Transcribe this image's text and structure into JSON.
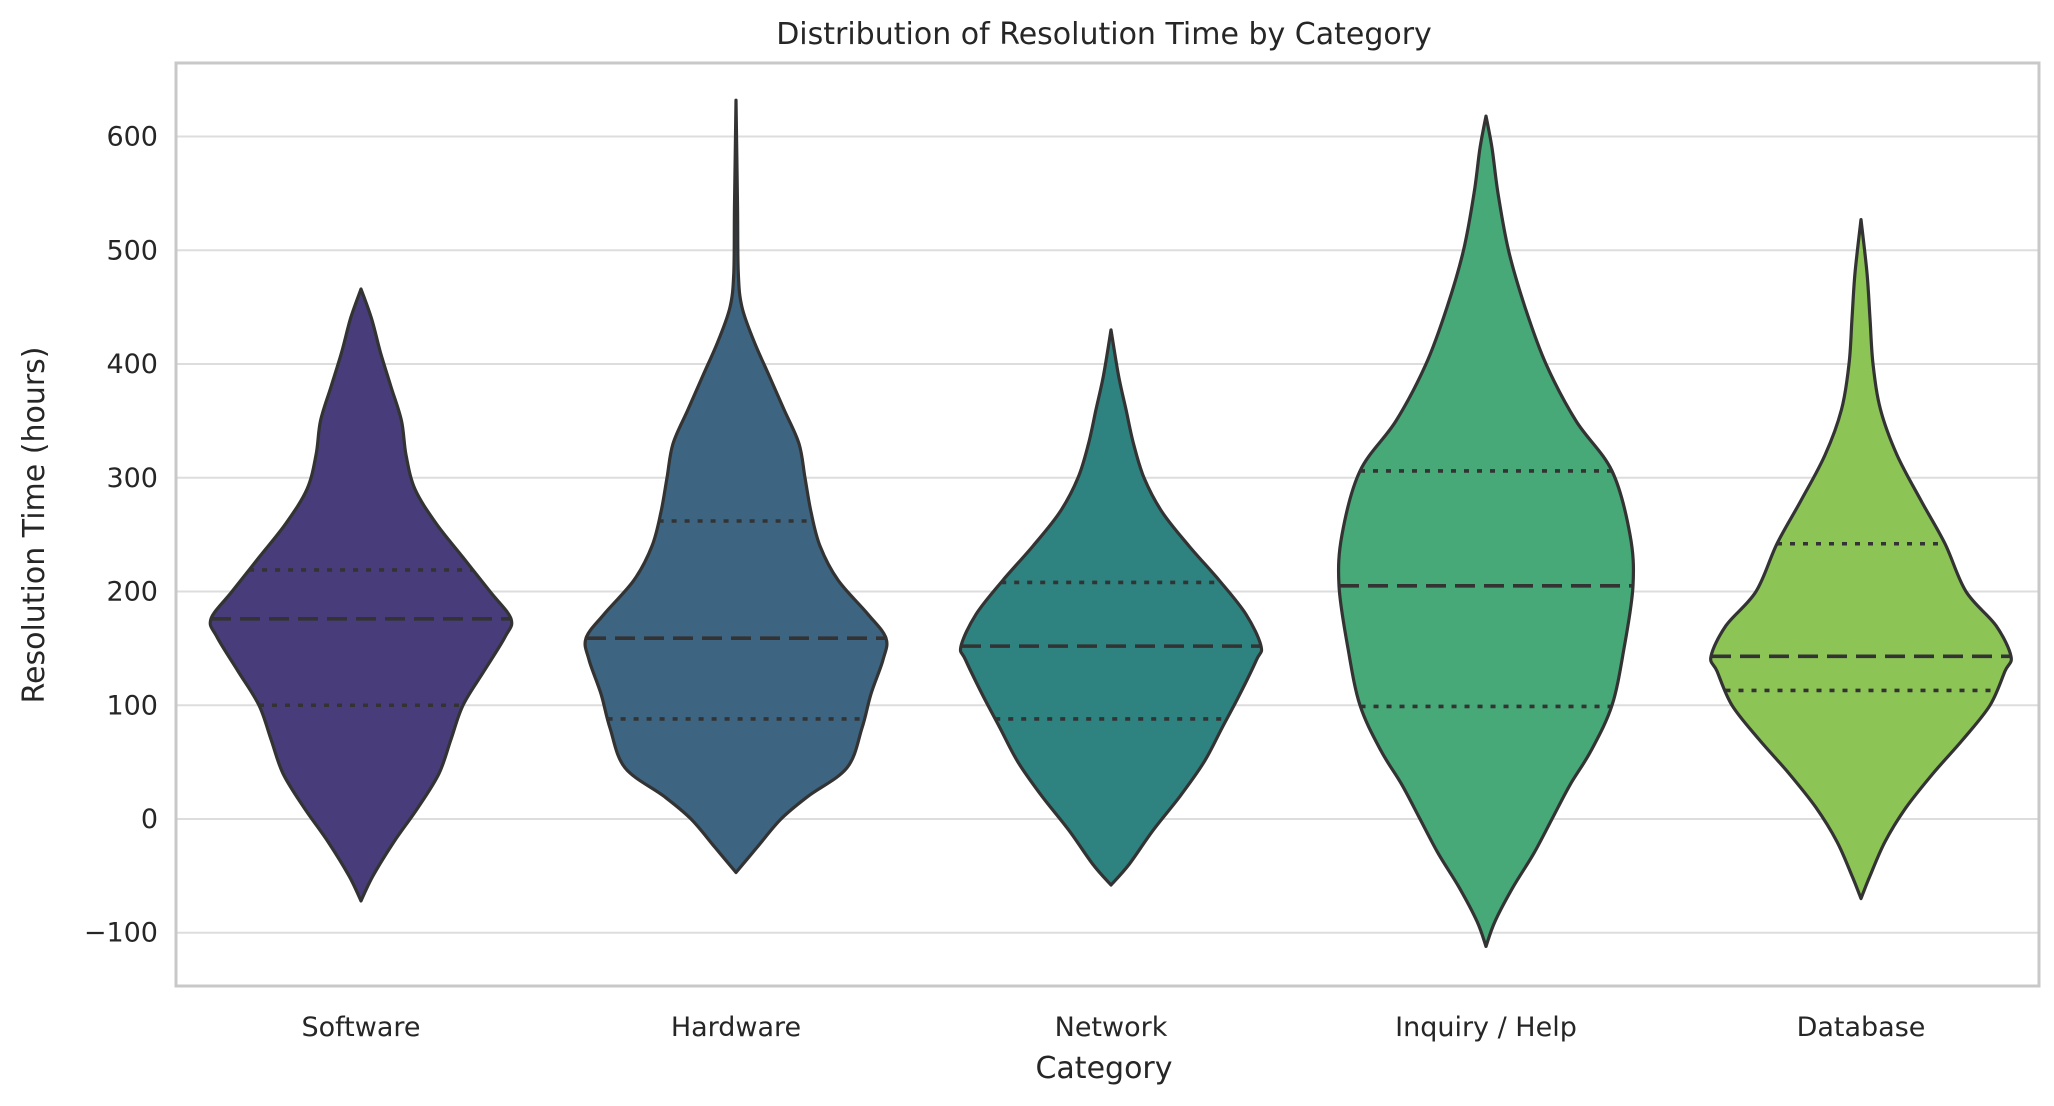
{
  "chart_data": {
    "type": "violin",
    "title": "Distribution of Resolution Time by Category",
    "xlabel": "Category",
    "ylabel": "Resolution Time (hours)",
    "ylim": [
      -150,
      670
    ],
    "yticks": [
      -100,
      0,
      100,
      200,
      300,
      400,
      500,
      600
    ],
    "ytick_labels": [
      "−100",
      "0",
      "100",
      "200",
      "300",
      "400",
      "500",
      "600"
    ],
    "grid": "horizontal",
    "inner": "quartile",
    "categories": [
      "Software",
      "Hardware",
      "Network",
      "Inquiry / Help",
      "Database"
    ],
    "series": [
      {
        "category": "Software",
        "color": "#483d7a",
        "min": -72,
        "max": 466,
        "q1": 100,
        "median": 176,
        "q3": 219,
        "density_profile": [
          [
            -72,
            0.0
          ],
          [
            -50,
            0.08
          ],
          [
            -20,
            0.22
          ],
          [
            10,
            0.38
          ],
          [
            40,
            0.52
          ],
          [
            70,
            0.6
          ],
          [
            100,
            0.68
          ],
          [
            130,
            0.82
          ],
          [
            160,
            0.96
          ],
          [
            176,
            1.0
          ],
          [
            200,
            0.86
          ],
          [
            230,
            0.68
          ],
          [
            260,
            0.5
          ],
          [
            290,
            0.36
          ],
          [
            320,
            0.3
          ],
          [
            350,
            0.27
          ],
          [
            380,
            0.2
          ],
          [
            410,
            0.13
          ],
          [
            440,
            0.07
          ],
          [
            466,
            0.0
          ]
        ]
      },
      {
        "category": "Hardware",
        "color": "#3d6581",
        "min": -47,
        "max": 632,
        "q1": 88,
        "median": 159,
        "q3": 262,
        "density_profile": [
          [
            -47,
            0.0
          ],
          [
            -25,
            0.14
          ],
          [
            0,
            0.3
          ],
          [
            20,
            0.48
          ],
          [
            45,
            0.74
          ],
          [
            80,
            0.84
          ],
          [
            110,
            0.9
          ],
          [
            140,
            0.98
          ],
          [
            159,
            1.0
          ],
          [
            180,
            0.88
          ],
          [
            210,
            0.68
          ],
          [
            240,
            0.56
          ],
          [
            270,
            0.5
          ],
          [
            300,
            0.46
          ],
          [
            330,
            0.42
          ],
          [
            360,
            0.32
          ],
          [
            390,
            0.22
          ],
          [
            420,
            0.12
          ],
          [
            450,
            0.04
          ],
          [
            480,
            0.015
          ],
          [
            540,
            0.01
          ],
          [
            632,
            0.0
          ]
        ]
      },
      {
        "category": "Network",
        "color": "#2e8380",
        "min": -58,
        "max": 430,
        "q1": 88,
        "median": 152,
        "q3": 208,
        "density_profile": [
          [
            -58,
            0.0
          ],
          [
            -40,
            0.12
          ],
          [
            -10,
            0.28
          ],
          [
            20,
            0.46
          ],
          [
            50,
            0.62
          ],
          [
            80,
            0.74
          ],
          [
            110,
            0.86
          ],
          [
            140,
            0.97
          ],
          [
            152,
            1.0
          ],
          [
            180,
            0.9
          ],
          [
            210,
            0.72
          ],
          [
            240,
            0.52
          ],
          [
            270,
            0.34
          ],
          [
            300,
            0.22
          ],
          [
            330,
            0.15
          ],
          [
            360,
            0.1
          ],
          [
            390,
            0.05
          ],
          [
            430,
            0.0
          ]
        ]
      },
      {
        "category": "Inquiry / Help",
        "color": "#47a878",
        "min": -112,
        "max": 618,
        "q1": 99,
        "median": 205,
        "q3": 306,
        "density_profile": [
          [
            -112,
            0.0
          ],
          [
            -90,
            0.06
          ],
          [
            -60,
            0.18
          ],
          [
            -30,
            0.32
          ],
          [
            0,
            0.44
          ],
          [
            30,
            0.56
          ],
          [
            60,
            0.7
          ],
          [
            100,
            0.84
          ],
          [
            150,
            0.92
          ],
          [
            205,
            0.98
          ],
          [
            250,
            0.96
          ],
          [
            306,
            0.84
          ],
          [
            350,
            0.6
          ],
          [
            400,
            0.4
          ],
          [
            450,
            0.26
          ],
          [
            500,
            0.15
          ],
          [
            550,
            0.08
          ],
          [
            590,
            0.04
          ],
          [
            618,
            0.0
          ]
        ]
      },
      {
        "category": "Database",
        "color": "#8dc456",
        "min": -70,
        "max": 527,
        "q1": 113,
        "median": 143,
        "q3": 242,
        "density_profile": [
          [
            -70,
            0.0
          ],
          [
            -50,
            0.06
          ],
          [
            -20,
            0.16
          ],
          [
            10,
            0.3
          ],
          [
            40,
            0.48
          ],
          [
            70,
            0.68
          ],
          [
            100,
            0.86
          ],
          [
            130,
            0.96
          ],
          [
            143,
            1.0
          ],
          [
            170,
            0.9
          ],
          [
            200,
            0.7
          ],
          [
            242,
            0.56
          ],
          [
            280,
            0.4
          ],
          [
            320,
            0.24
          ],
          [
            360,
            0.13
          ],
          [
            400,
            0.08
          ],
          [
            440,
            0.06
          ],
          [
            480,
            0.04
          ],
          [
            527,
            0.0
          ]
        ]
      }
    ]
  }
}
